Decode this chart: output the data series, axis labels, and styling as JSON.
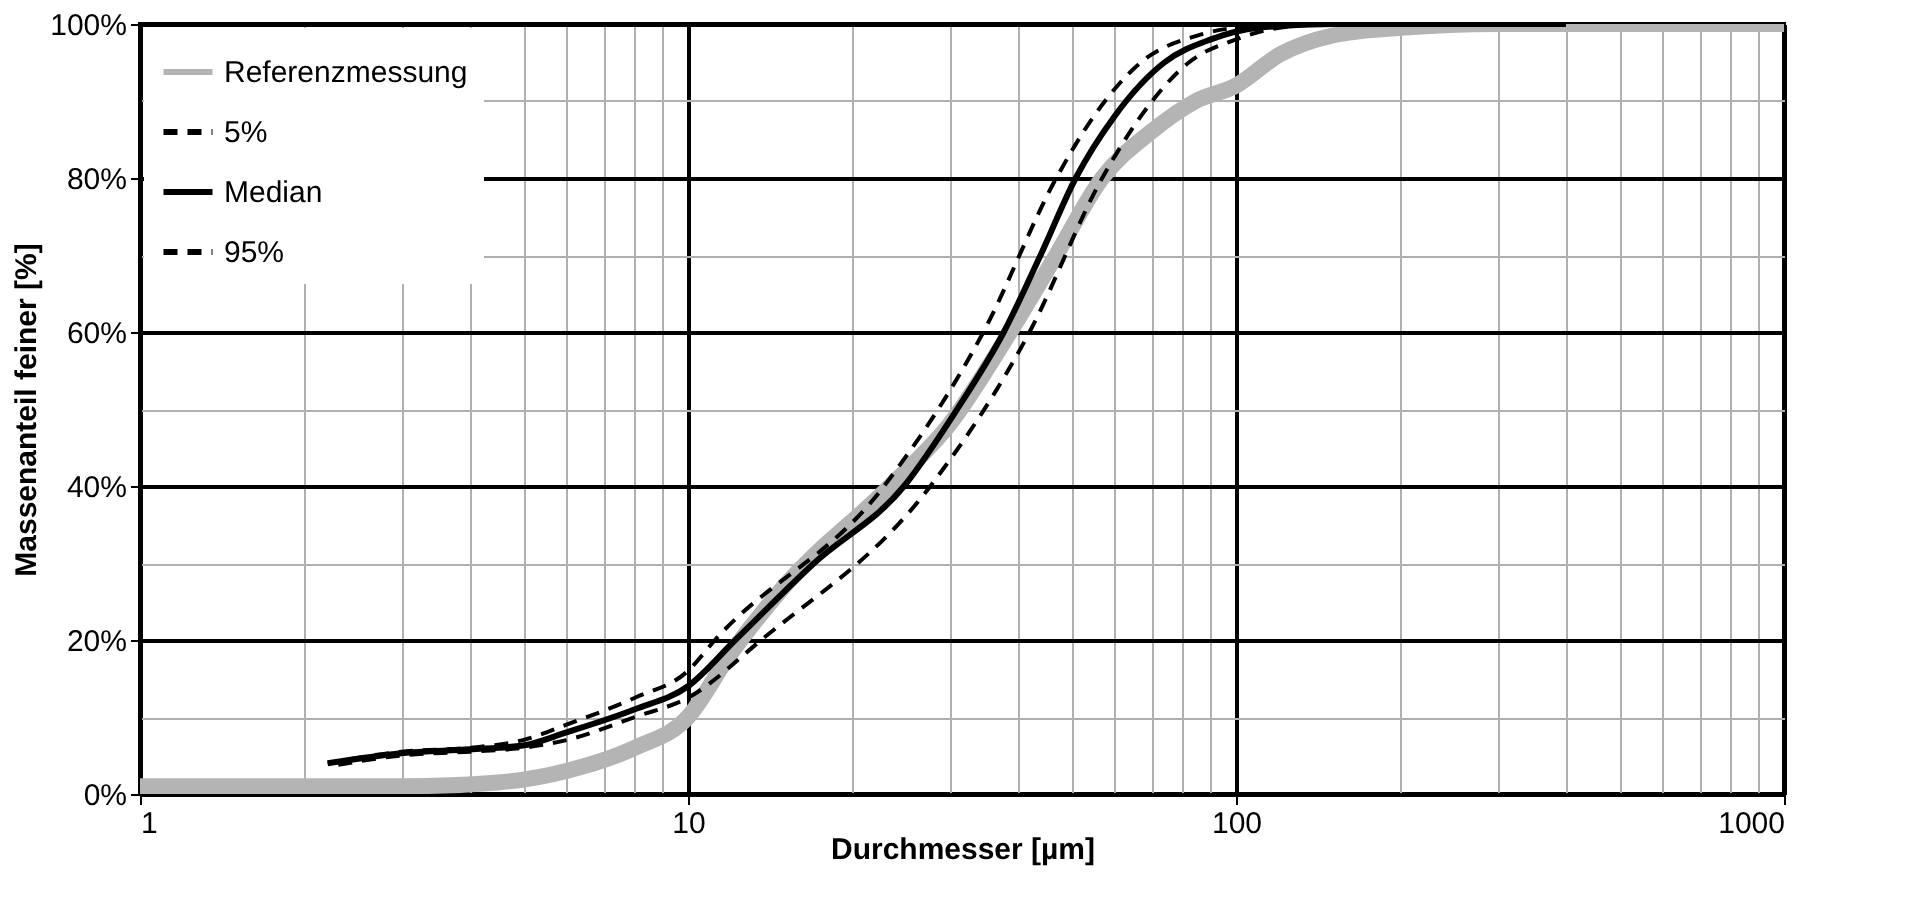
{
  "chart_data": {
    "type": "line",
    "xlabel": "Durchmesser [µm]",
    "ylabel": "Massenanteil feiner [%]",
    "log": "x",
    "grid": true,
    "legend": "top left",
    "xlim": [
      1,
      1000
    ],
    "ylim": [
      0,
      100
    ],
    "xticks": [
      1,
      {
        "value": 2,
        "label": null
      },
      {
        "value": 3,
        "label": null
      },
      {
        "value": 4,
        "label": null
      },
      {
        "value": 5,
        "label": null
      },
      {
        "value": 6,
        "label": null
      },
      {
        "value": 7,
        "label": null
      },
      {
        "value": 8,
        "label": null
      },
      {
        "value": 9,
        "label": null
      },
      10,
      {
        "value": 20,
        "label": null
      },
      {
        "value": 30,
        "label": null
      },
      {
        "value": 40,
        "label": null
      },
      {
        "value": 50,
        "label": null
      },
      {
        "value": 60,
        "label": null
      },
      {
        "value": 70,
        "label": null
      },
      {
        "value": 80,
        "label": null
      },
      {
        "value": 90,
        "label": null
      },
      100,
      {
        "value": 200,
        "label": null
      },
      {
        "value": 300,
        "label": null
      },
      {
        "value": 400,
        "label": null
      },
      {
        "value": 500,
        "label": null
      },
      {
        "value": 600,
        "label": null
      },
      {
        "value": 700,
        "label": null
      },
      {
        "value": 800,
        "label": null
      },
      {
        "value": 900,
        "label": null
      },
      1000
    ],
    "yticks": [
      {
        "value": 0,
        "label": "0%"
      },
      {
        "value": 10,
        "label": null
      },
      {
        "value": 20,
        "label": "20%"
      },
      {
        "value": 30,
        "label": null
      },
      {
        "value": 40,
        "label": "40%"
      },
      {
        "value": 50,
        "label": null
      },
      {
        "value": 60,
        "label": "60%"
      },
      {
        "value": 70,
        "label": null
      },
      {
        "value": 80,
        "label": "80%"
      },
      {
        "value": 90,
        "label": null
      },
      {
        "value": 100,
        "label": "100%"
      }
    ],
    "series": [
      {
        "name": "Referenzmessung",
        "color": "#b4b4b4",
        "line_style": "solid",
        "x": [
          1,
          3,
          4.5,
          6,
          8,
          10,
          11.9,
          15,
          23.4,
          30,
          38.7,
          47,
          57,
          70,
          84.5,
          100,
          120,
          150,
          200,
          300,
          1000
        ],
        "values": [
          1,
          1,
          1.5,
          3,
          6,
          10,
          18,
          27,
          40,
          48,
          60,
          70,
          80,
          86,
          90,
          92,
          96,
          98.5,
          99.5,
          100,
          100
        ]
      },
      {
        "name": "5%",
        "color": "#000000",
        "line_style": "dashed",
        "x": [
          2.2,
          3,
          4,
          5,
          6,
          8,
          10,
          11.2,
          22.8,
          34.6,
          47,
          55,
          67,
          85,
          100,
          150,
          400
        ],
        "values": [
          4,
          5.5,
          6,
          7,
          9,
          12.5,
          16,
          20,
          40,
          60,
          80,
          88,
          95,
          98.5,
          99.5,
          100,
          100
        ]
      },
      {
        "name": "Median",
        "color": "#000000",
        "line_style": "solid",
        "x": [
          2.2,
          3,
          4,
          5,
          6,
          8,
          10,
          12.2,
          17,
          24.8,
          31,
          37.7,
          44,
          51,
          60,
          74,
          90,
          110,
          150,
          400
        ],
        "values": [
          4,
          5.3,
          5.8,
          6.3,
          8,
          11,
          14,
          20,
          30,
          40,
          50,
          60,
          70,
          80,
          88,
          95,
          98,
          99.5,
          100,
          100
        ]
      },
      {
        "name": "95%",
        "color": "#000000",
        "line_style": "dashed",
        "x": [
          2.3,
          3,
          4,
          5,
          6,
          8,
          10,
          13.6,
          27.7,
          42,
          57,
          67,
          82,
          100,
          120,
          150,
          350
        ],
        "values": [
          3.8,
          5,
          5.5,
          6,
          7,
          10,
          12.5,
          20,
          40,
          60,
          80,
          88,
          95,
          98,
          99.5,
          100,
          100
        ]
      }
    ]
  }
}
